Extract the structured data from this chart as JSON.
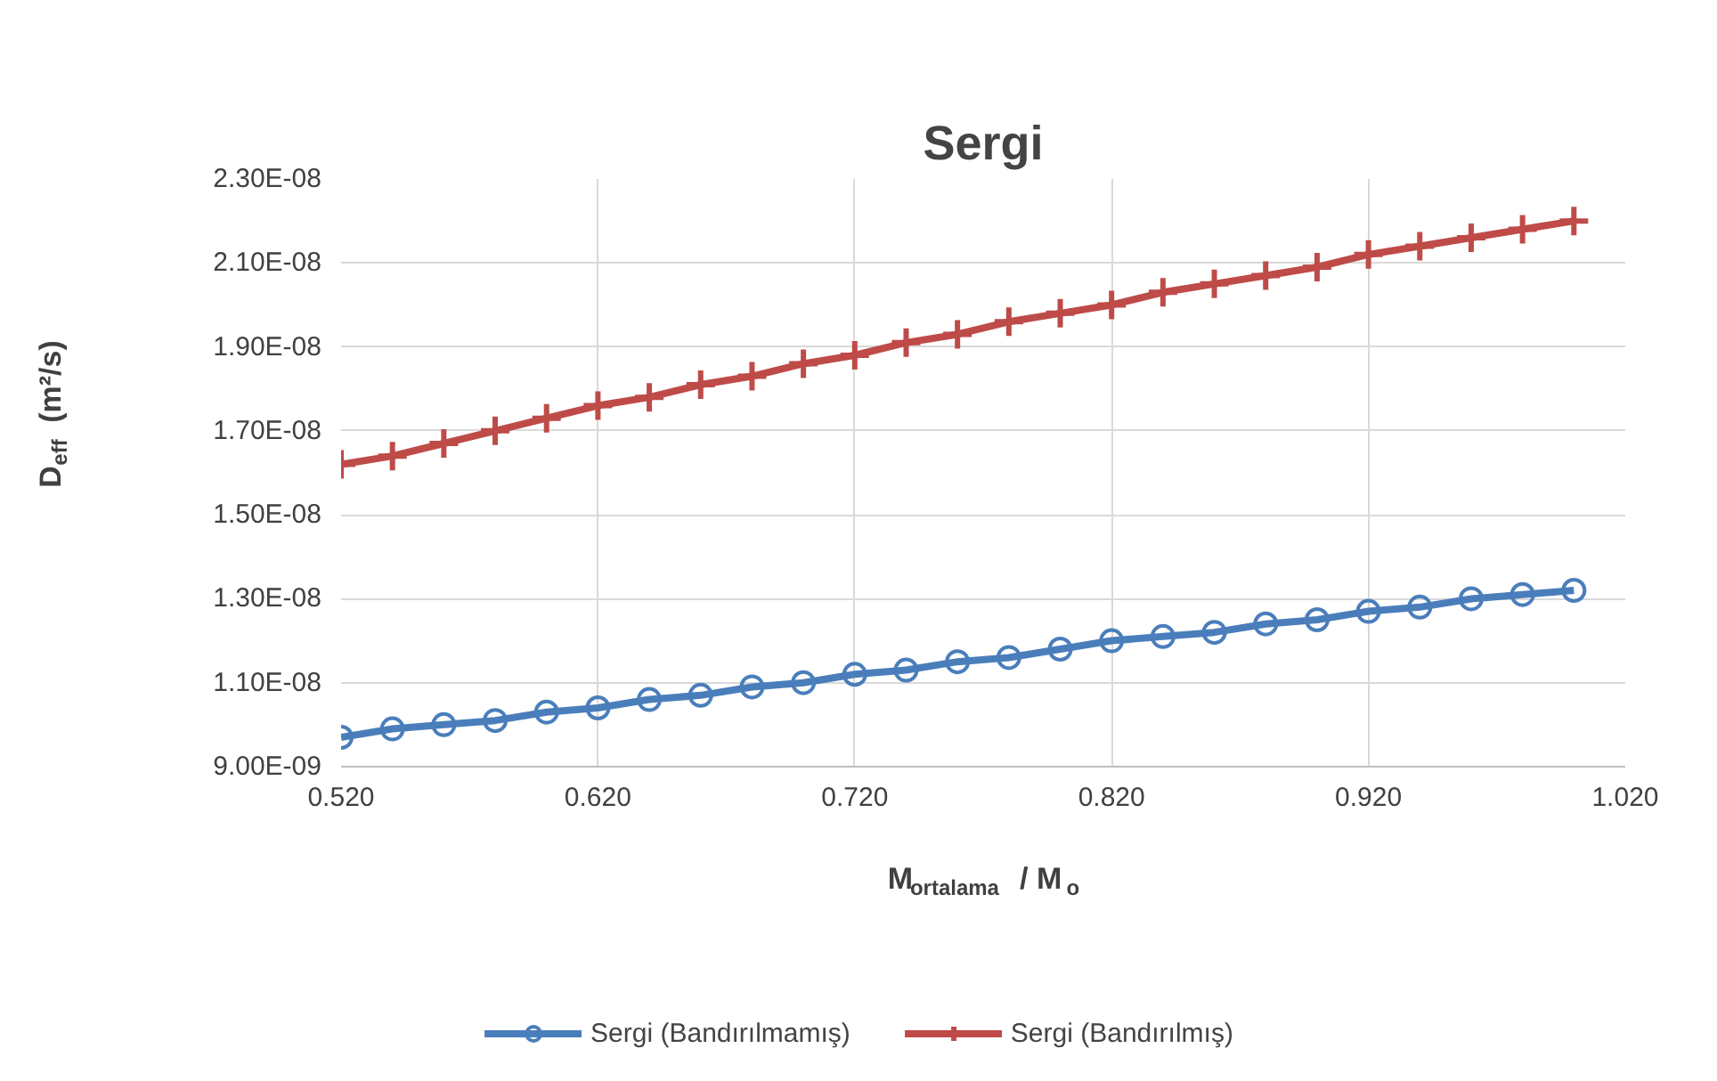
{
  "chart_data": {
    "type": "line",
    "title": "Sergi",
    "xlabel": "M$_{ortalama}$ / M$_{o}$",
    "ylabel": "D$_{eff}$ (m²/s)",
    "x": [
      0.52,
      0.54,
      0.56,
      0.58,
      0.6,
      0.62,
      0.64,
      0.66,
      0.68,
      0.7,
      0.72,
      0.74,
      0.76,
      0.78,
      0.8,
      0.82,
      0.84,
      0.86,
      0.88,
      0.9,
      0.92,
      0.94,
      0.96,
      0.98,
      1.0
    ],
    "series": [
      {
        "name": "Sergi (Bandırılmamış)",
        "color": "#4a7ebb",
        "marker": "circle",
        "values": [
          9.7e-09,
          9.9e-09,
          1e-08,
          1.01e-08,
          1.03e-08,
          1.04e-08,
          1.06e-08,
          1.07e-08,
          1.09e-08,
          1.1e-08,
          1.12e-08,
          1.13e-08,
          1.15e-08,
          1.16e-08,
          1.18e-08,
          1.2e-08,
          1.21e-08,
          1.22e-08,
          1.24e-08,
          1.25e-08,
          1.27e-08,
          1.28e-08,
          1.3e-08,
          1.31e-08,
          1.32e-08
        ]
      },
      {
        "name": "Sergi (Bandırılmış)",
        "color": "#be4b48",
        "marker": "cross",
        "values": [
          1.62e-08,
          1.64e-08,
          1.67e-08,
          1.7e-08,
          1.73e-08,
          1.76e-08,
          1.78e-08,
          1.81e-08,
          1.83e-08,
          1.86e-08,
          1.88e-08,
          1.91e-08,
          1.93e-08,
          1.96e-08,
          1.98e-08,
          2e-08,
          2.03e-08,
          2.05e-08,
          2.07e-08,
          2.09e-08,
          2.12e-08,
          2.14e-08,
          2.16e-08,
          2.18e-08,
          2.2e-08
        ]
      }
    ],
    "xlim": [
      0.52,
      1.02
    ],
    "xticks": [
      {
        "value": 0.52,
        "label": "0.520"
      },
      {
        "value": 0.62,
        "label": "0.620"
      },
      {
        "value": 0.72,
        "label": "0.720"
      },
      {
        "value": 0.82,
        "label": "0.820"
      },
      {
        "value": 0.92,
        "label": "0.920"
      },
      {
        "value": 1.02,
        "label": "1.020"
      }
    ],
    "ylim": [
      9e-09,
      2.3e-08
    ],
    "yticks": [
      {
        "value": 9e-09,
        "label": "9.00E-09"
      },
      {
        "value": 1.1e-08,
        "label": "1.10E-08"
      },
      {
        "value": 1.3e-08,
        "label": "1.30E-08"
      },
      {
        "value": 1.5e-08,
        "label": "1.50E-08"
      },
      {
        "value": 1.7e-08,
        "label": "1.70E-08"
      },
      {
        "value": 1.9e-08,
        "label": "1.90E-08"
      },
      {
        "value": 2.1e-08,
        "label": "2.10E-08"
      },
      {
        "value": 2.3e-08,
        "label": "2.30E-08"
      }
    ],
    "grid": true,
    "legend": "bottom",
    "line_style": "solid"
  }
}
